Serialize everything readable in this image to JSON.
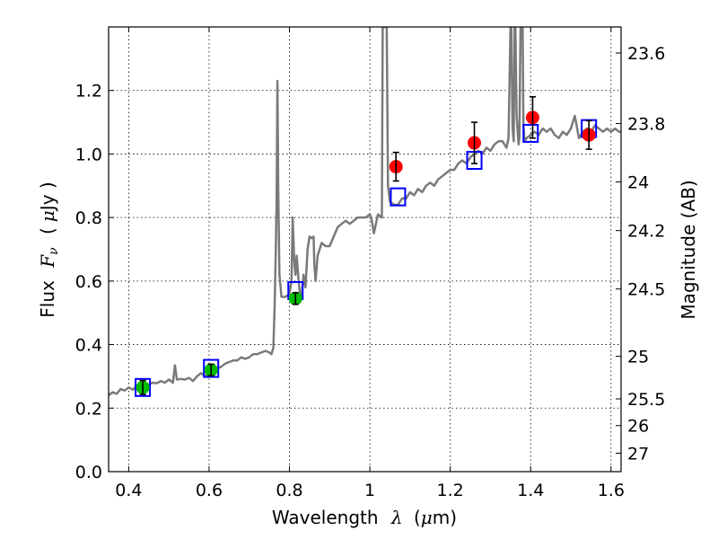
{
  "chart_data": {
    "type": "scatter",
    "xlabel": {
      "prefix": "Wavelength",
      "symbol": "λ",
      "unit_open": "(",
      "unit_mu": "μ",
      "unit_rest": "m)"
    },
    "ylabel": {
      "prefix": "Flux",
      "symbol": "F",
      "subscript": "ν",
      "unit_open": "(",
      "unit_mu": "μ",
      "unit_rest": "Jy )"
    },
    "y2label": "Magnitude (AB)",
    "xlim": [
      0.35,
      1.625
    ],
    "ylim": [
      0.0,
      1.4
    ],
    "x_ticks": [
      0.4,
      0.6,
      0.8,
      1.0,
      1.2,
      1.4,
      1.6
    ],
    "x_tick_labels": [
      "0.4",
      "0.6",
      "0.8",
      "1",
      "1.2",
      "1.4",
      "1.6"
    ],
    "y_ticks": [
      0.0,
      0.2,
      0.4,
      0.6,
      0.8,
      1.0,
      1.2
    ],
    "y_tick_labels": [
      "0.0",
      "0.2",
      "0.4",
      "0.6",
      "0.8",
      "1.0",
      "1.2"
    ],
    "magnitude_ticks": [
      {
        "label": "23.6",
        "flux": 1.318
      },
      {
        "label": "23.8",
        "flux": 1.096
      },
      {
        "label": "24",
        "flux": 0.912
      },
      {
        "label": "24.2",
        "flux": 0.759
      },
      {
        "label": "24.5",
        "flux": 0.575
      },
      {
        "label": "25",
        "flux": 0.363
      },
      {
        "label": "25.5",
        "flux": 0.229
      },
      {
        "label": "26",
        "flux": 0.145
      },
      {
        "label": "27",
        "flux": 0.058
      }
    ],
    "grid": true,
    "series": [
      {
        "name": "model spectrum",
        "kind": "line",
        "color": "#7a7a7a",
        "x": [
          0.35,
          0.36,
          0.37,
          0.38,
          0.39,
          0.4,
          0.41,
          0.42,
          0.43,
          0.44,
          0.45,
          0.46,
          0.47,
          0.48,
          0.49,
          0.5,
          0.51,
          0.515,
          0.52,
          0.53,
          0.54,
          0.55,
          0.56,
          0.57,
          0.58,
          0.59,
          0.6,
          0.61,
          0.62,
          0.63,
          0.64,
          0.65,
          0.66,
          0.67,
          0.68,
          0.69,
          0.7,
          0.71,
          0.72,
          0.73,
          0.74,
          0.75,
          0.755,
          0.76,
          0.763,
          0.766,
          0.768,
          0.77,
          0.772,
          0.775,
          0.778,
          0.78,
          0.79,
          0.8,
          0.805,
          0.808,
          0.812,
          0.815,
          0.818,
          0.822,
          0.826,
          0.83,
          0.835,
          0.84,
          0.845,
          0.85,
          0.855,
          0.86,
          0.862,
          0.865,
          0.87,
          0.88,
          0.89,
          0.9,
          0.91,
          0.92,
          0.93,
          0.94,
          0.95,
          0.96,
          0.97,
          0.98,
          0.99,
          1.0,
          1.005,
          1.01,
          1.02,
          1.03,
          1.032,
          1.035,
          1.038,
          1.042,
          1.045,
          1.048,
          1.05,
          1.06,
          1.07,
          1.08,
          1.09,
          1.1,
          1.11,
          1.12,
          1.13,
          1.14,
          1.15,
          1.16,
          1.17,
          1.18,
          1.19,
          1.2,
          1.21,
          1.22,
          1.23,
          1.24,
          1.25,
          1.26,
          1.27,
          1.28,
          1.29,
          1.3,
          1.31,
          1.32,
          1.33,
          1.34,
          1.345,
          1.35,
          1.352,
          1.355,
          1.358,
          1.36,
          1.362,
          1.365,
          1.37,
          1.372,
          1.375,
          1.378,
          1.38,
          1.382,
          1.385,
          1.39,
          1.4,
          1.41,
          1.42,
          1.43,
          1.44,
          1.45,
          1.46,
          1.47,
          1.48,
          1.49,
          1.5,
          1.51,
          1.52,
          1.53,
          1.54,
          1.55,
          1.56,
          1.57,
          1.58,
          1.59,
          1.6,
          1.61,
          1.62,
          1.625
        ],
        "y": [
          0.24,
          0.25,
          0.245,
          0.26,
          0.255,
          0.265,
          0.258,
          0.27,
          0.265,
          0.27,
          0.275,
          0.28,
          0.278,
          0.285,
          0.28,
          0.29,
          0.28,
          0.335,
          0.29,
          0.292,
          0.29,
          0.295,
          0.285,
          0.3,
          0.31,
          0.3,
          0.31,
          0.32,
          0.325,
          0.33,
          0.34,
          0.345,
          0.35,
          0.35,
          0.36,
          0.355,
          0.36,
          0.37,
          0.37,
          0.375,
          0.38,
          0.375,
          0.37,
          0.39,
          0.52,
          0.7,
          0.85,
          1.23,
          0.9,
          0.62,
          0.58,
          0.55,
          0.55,
          0.56,
          0.6,
          0.8,
          0.66,
          0.62,
          0.68,
          0.61,
          0.56,
          0.55,
          0.62,
          0.58,
          0.7,
          0.74,
          0.735,
          0.74,
          0.65,
          0.6,
          0.68,
          0.72,
          0.71,
          0.71,
          0.74,
          0.77,
          0.78,
          0.79,
          0.78,
          0.79,
          0.8,
          0.8,
          0.8,
          0.81,
          0.79,
          0.75,
          0.81,
          0.8,
          1.4,
          1.4,
          1.4,
          1.4,
          0.9,
          0.87,
          0.85,
          0.84,
          0.84,
          0.86,
          0.86,
          0.88,
          0.87,
          0.89,
          0.88,
          0.9,
          0.91,
          0.9,
          0.92,
          0.93,
          0.94,
          0.95,
          0.95,
          0.97,
          0.98,
          0.97,
          0.99,
          1.0,
          1.01,
          1.0,
          1.02,
          1.01,
          1.03,
          1.04,
          1.04,
          1.02,
          1.05,
          1.4,
          1.4,
          1.08,
          1.04,
          1.4,
          1.4,
          1.12,
          1.03,
          1.05,
          1.4,
          1.4,
          1.4,
          1.09,
          1.04,
          1.05,
          1.06,
          1.07,
          1.06,
          1.08,
          1.07,
          1.08,
          1.06,
          1.05,
          1.07,
          1.06,
          1.08,
          1.12,
          1.05,
          1.07,
          1.08,
          1.07,
          1.09,
          1.08,
          1.07,
          1.08,
          1.07,
          1.08,
          1.07,
          1.07
        ]
      },
      {
        "name": "model photometry",
        "kind": "open-square",
        "color": "#0000ff",
        "x": [
          0.435,
          0.605,
          0.815,
          1.07,
          1.26,
          1.4,
          1.545
        ],
        "y": [
          0.265,
          0.325,
          0.57,
          0.865,
          0.98,
          1.065,
          1.08
        ]
      },
      {
        "name": "observed (green)",
        "kind": "circle-errorbar",
        "color": "#00bb00",
        "x": [
          0.435,
          0.605,
          0.815
        ],
        "y": [
          0.265,
          0.32,
          0.545
        ],
        "yerr": [
          0.022,
          0.018,
          0.018
        ]
      },
      {
        "name": "observed (red)",
        "kind": "circle-errorbar",
        "color": "#ff0000",
        "x": [
          1.065,
          1.26,
          1.405,
          1.545
        ],
        "y": [
          0.96,
          1.035,
          1.115,
          1.06
        ],
        "yerr": [
          0.045,
          0.065,
          0.065,
          0.045
        ]
      }
    ]
  }
}
